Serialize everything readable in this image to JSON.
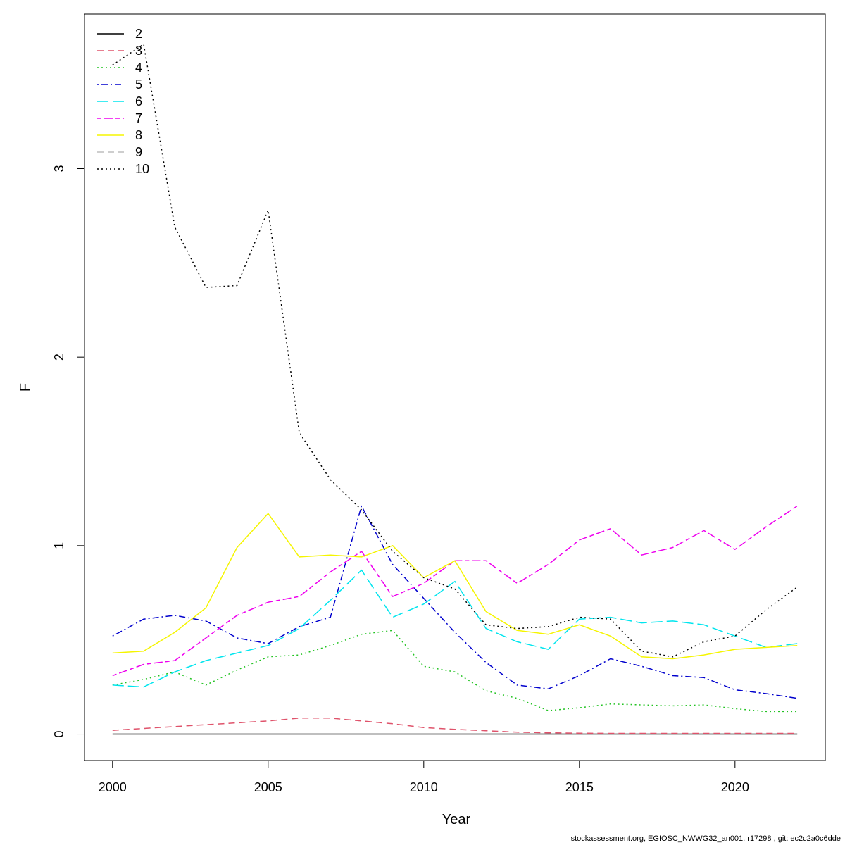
{
  "footer_text": "stockassessment.org, EGIOSC_NWWG32_an001, r17298 , git: ec2c2a0c6dde",
  "chart_data": {
    "type": "line",
    "title": "",
    "xlabel": "Year",
    "ylabel": "F",
    "xlim": [
      1999.1,
      2022.9
    ],
    "ylim": [
      -0.14,
      3.82
    ],
    "x_ticks": [
      2000,
      2005,
      2010,
      2015,
      2020
    ],
    "y_ticks": [
      0,
      1,
      2,
      3
    ],
    "legend_position": "top-left",
    "x": [
      2000,
      2001,
      2002,
      2003,
      2004,
      2005,
      2006,
      2007,
      2008,
      2009,
      2010,
      2011,
      2012,
      2013,
      2014,
      2015,
      2016,
      2017,
      2018,
      2019,
      2020,
      2021,
      2022
    ],
    "series": [
      {
        "name": "2",
        "color": "#000000",
        "dash": "solid",
        "values": [
          0,
          0,
          0,
          0,
          0,
          0,
          0,
          0,
          0,
          0,
          0,
          0,
          0,
          0,
          0,
          0,
          0,
          0,
          0,
          0,
          0,
          0,
          0
        ]
      },
      {
        "name": "3",
        "color": "#df536b",
        "dash": "dashed",
        "values": [
          0.02,
          0.03,
          0.04,
          0.05,
          0.06,
          0.07,
          0.085,
          0.085,
          0.07,
          0.055,
          0.035,
          0.025,
          0.018,
          0.01,
          0.007,
          0.005,
          0.004,
          0.004,
          0.004,
          0.004,
          0.004,
          0.004,
          0.004
        ]
      },
      {
        "name": "4",
        "color": "#22c322",
        "dash": "dotted",
        "values": [
          0.26,
          0.29,
          0.33,
          0.26,
          0.34,
          0.41,
          0.42,
          0.47,
          0.53,
          0.55,
          0.36,
          0.33,
          0.23,
          0.19,
          0.125,
          0.14,
          0.16,
          0.155,
          0.15,
          0.155,
          0.135,
          0.12,
          0.12
        ]
      },
      {
        "name": "5",
        "color": "#0000cd",
        "dash": "dotdash",
        "values": [
          0.52,
          0.61,
          0.63,
          0.6,
          0.51,
          0.48,
          0.57,
          0.62,
          1.21,
          0.9,
          0.72,
          0.54,
          0.38,
          0.26,
          0.24,
          0.31,
          0.4,
          0.36,
          0.31,
          0.3,
          0.235,
          0.215,
          0.19
        ]
      },
      {
        "name": "6",
        "color": "#00e5ee",
        "dash": "longdash",
        "values": [
          0.26,
          0.25,
          0.33,
          0.39,
          0.43,
          0.47,
          0.56,
          0.71,
          0.87,
          0.62,
          0.69,
          0.81,
          0.56,
          0.49,
          0.45,
          0.61,
          0.62,
          0.59,
          0.6,
          0.58,
          0.52,
          0.46,
          0.48
        ]
      },
      {
        "name": "7",
        "color": "#ee00ee",
        "dash": "twodash",
        "values": [
          0.31,
          0.37,
          0.39,
          0.51,
          0.63,
          0.7,
          0.73,
          0.86,
          0.97,
          0.73,
          0.8,
          0.92,
          0.92,
          0.8,
          0.9,
          1.03,
          1.09,
          0.95,
          0.99,
          1.08,
          0.98,
          1.1,
          1.21
        ]
      },
      {
        "name": "8",
        "color": "#f5f500",
        "dash": "solid",
        "values": [
          0.43,
          0.44,
          0.54,
          0.67,
          0.99,
          1.17,
          0.94,
          0.95,
          0.94,
          1.0,
          0.83,
          0.92,
          0.65,
          0.55,
          0.53,
          0.58,
          0.52,
          0.41,
          0.4,
          0.42,
          0.45,
          0.46,
          0.47
        ]
      },
      {
        "name": "9",
        "color": "#bebebe",
        "dash": "dashed",
        "values": null
      },
      {
        "name": "10",
        "color": "#000000",
        "dash": "dotted",
        "values": [
          3.55,
          3.66,
          2.69,
          2.37,
          2.38,
          2.78,
          1.6,
          1.35,
          1.19,
          0.97,
          0.83,
          0.77,
          0.58,
          0.56,
          0.57,
          0.62,
          0.61,
          0.44,
          0.41,
          0.49,
          0.52,
          0.66,
          0.78
        ]
      }
    ]
  }
}
